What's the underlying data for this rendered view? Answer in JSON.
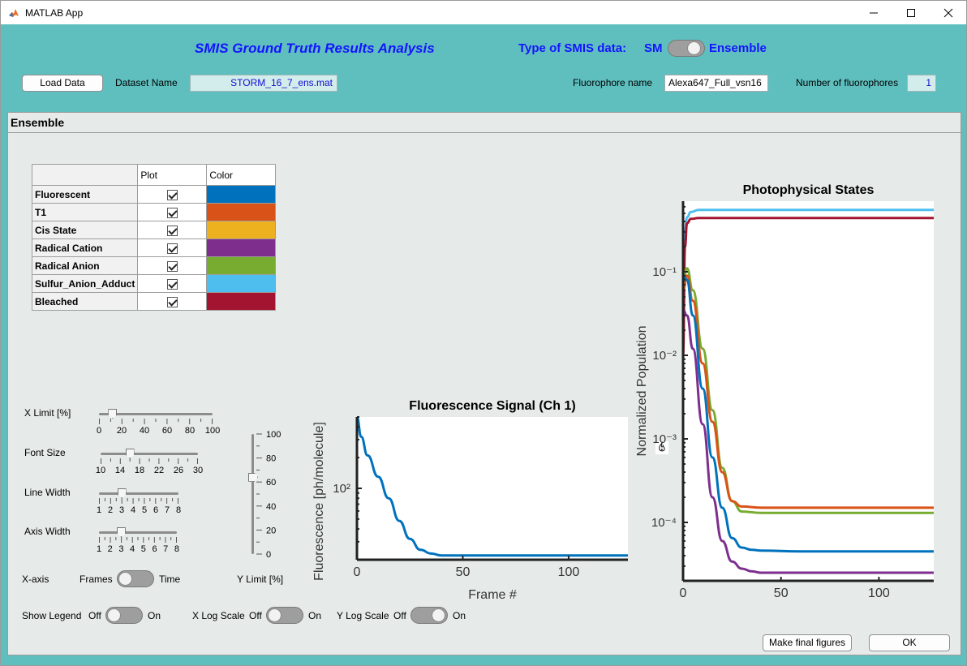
{
  "window": {
    "title": "MATLAB App"
  },
  "header": {
    "app_title": "SMIS Ground Truth Results Analysis",
    "type_label": "Type of SMIS data:",
    "type_left": "SM",
    "type_right": "Ensemble",
    "type_value": "SM"
  },
  "controls": {
    "load_button": "Load Data",
    "dataset_label": "Dataset Name",
    "dataset_value": "STORM_16_7_ens.mat",
    "fluor_label": "Fluorophore name",
    "fluor_value": "Alexa647_Full_vsn16",
    "nfluor_label": "Number of fluorophores",
    "nfluor_value": "1"
  },
  "panel": {
    "title": "Ensemble"
  },
  "states_table": {
    "headers": [
      "",
      "Plot",
      "Color"
    ],
    "rows": [
      {
        "name": "Fluorescent",
        "plot": true,
        "color": "#0072BD"
      },
      {
        "name": "T1",
        "plot": true,
        "color": "#D95319"
      },
      {
        "name": "Cis State",
        "plot": true,
        "color": "#EDB120"
      },
      {
        "name": "Radical Cation",
        "plot": true,
        "color": "#7E2F8E"
      },
      {
        "name": "Radical Anion",
        "plot": true,
        "color": "#77AC30"
      },
      {
        "name": "Sulfur_Anion_Adduct",
        "plot": true,
        "color": "#4DBEEE"
      },
      {
        "name": "Bleached",
        "plot": true,
        "color": "#A2142F"
      }
    ]
  },
  "sliders": {
    "xlimit": {
      "label": "X Limit [%]",
      "ticks": [
        "0",
        "20",
        "40",
        "60",
        "80",
        "100"
      ],
      "value": 12
    },
    "fontsize": {
      "label": "Font Size",
      "ticks": [
        "10",
        "14",
        "18",
        "22",
        "26",
        "30"
      ],
      "value": 16
    },
    "linewidth": {
      "label": "Line Width",
      "ticks": [
        "1",
        "2",
        "3",
        "4",
        "5",
        "6",
        "7",
        "8"
      ],
      "value": 3
    },
    "axiswidth": {
      "label": "Axis Width",
      "ticks": [
        "1",
        "2",
        "3",
        "4",
        "5",
        "6",
        "7",
        "8"
      ],
      "value": 3
    },
    "ylimit": {
      "label": "Y Limit [%]",
      "ticks": [
        "100",
        "80",
        "60",
        "40",
        "20",
        "0"
      ],
      "value": 64
    }
  },
  "toggles": {
    "xaxis": {
      "label": "X-axis",
      "off": "Frames",
      "on": "Time",
      "value": "Frames"
    },
    "legend": {
      "label": "Show Legend",
      "off": "Off",
      "on": "On",
      "value": "Off"
    },
    "xlog": {
      "label": "X Log Scale",
      "off": "Off",
      "on": "On",
      "value": "Off"
    },
    "ylog": {
      "label": "Y Log Scale",
      "off": "Off",
      "on": "On",
      "value": "On"
    }
  },
  "buttons": {
    "final_figures": "Make final figures",
    "ok": "OK"
  },
  "icons": {
    "app": "matlab-icon",
    "flame": "flame-icon",
    "minimize": "minimize-icon",
    "maximize": "maximize-icon",
    "close": "close-icon"
  },
  "chart_data": [
    {
      "type": "line",
      "title": "Fluorescence Signal (Ch 1)",
      "xlabel": "Frame #",
      "ylabel": "Fluorescence [ph/molecule]",
      "xticks": [
        0,
        50,
        100
      ],
      "yticks": [
        "10²"
      ],
      "xlim": [
        0,
        128
      ],
      "ylim": [
        20,
        500
      ],
      "yscale": "log",
      "series": [
        {
          "color": "#0072BD",
          "x": [
            0,
            2,
            5,
            10,
            15,
            20,
            25,
            30,
            35,
            40,
            60,
            80,
            100,
            128
          ],
          "y": [
            500,
            320,
            210,
            130,
            80,
            48,
            32,
            25,
            23,
            22,
            22,
            22,
            22,
            22
          ]
        }
      ]
    },
    {
      "type": "line",
      "title": "Photophysical States",
      "xlabel": "Frame #",
      "ylabel": "Normalized Population",
      "xticks": [
        0,
        50,
        100
      ],
      "yticks": [
        "10⁻¹",
        "10⁻²",
        "10⁻³",
        "10⁻⁴"
      ],
      "xlim": [
        0,
        128
      ],
      "ylim": [
        2e-05,
        0.7
      ],
      "yscale": "log",
      "series": [
        {
          "color": "#4DBEEE",
          "x": [
            0,
            1,
            2,
            4,
            8,
            128
          ],
          "y": [
            0.06,
            0.3,
            0.45,
            0.52,
            0.55,
            0.55
          ]
        },
        {
          "color": "#A2142F",
          "x": [
            0,
            1,
            2,
            4,
            8,
            128
          ],
          "y": [
            0.01,
            0.2,
            0.38,
            0.43,
            0.44,
            0.44
          ]
        },
        {
          "color": "#77AC30",
          "x": [
            0,
            2,
            5,
            10,
            15,
            20,
            25,
            30,
            40,
            60,
            128
          ],
          "y": [
            0.08,
            0.11,
            0.06,
            0.012,
            0.0022,
            0.00045,
            0.00018,
            0.000135,
            0.00013,
            0.00013,
            0.00013
          ]
        },
        {
          "color": "#D95319",
          "x": [
            0,
            2,
            5,
            10,
            15,
            20,
            25,
            30,
            40,
            60,
            128
          ],
          "y": [
            0.06,
            0.09,
            0.045,
            0.008,
            0.0016,
            0.0004,
            0.00018,
            0.000155,
            0.00015,
            0.00015,
            0.00015
          ]
        },
        {
          "color": "#0072BD",
          "x": [
            0,
            2,
            5,
            10,
            15,
            20,
            25,
            30,
            35,
            40,
            60,
            128
          ],
          "y": [
            0.09,
            0.08,
            0.03,
            0.004,
            0.0006,
            0.00015,
            6.5e-05,
            5e-05,
            4.7e-05,
            4.6e-05,
            4.5e-05,
            4.5e-05
          ]
        },
        {
          "color": "#7E2F8E",
          "x": [
            0,
            2,
            5,
            10,
            15,
            20,
            25,
            30,
            35,
            40,
            60,
            128
          ],
          "y": [
            0.035,
            0.03,
            0.012,
            0.0015,
            0.0002,
            6e-05,
            3.4e-05,
            2.8e-05,
            2.6e-05,
            2.5e-05,
            2.5e-05,
            2.5e-05
          ]
        }
      ]
    }
  ]
}
